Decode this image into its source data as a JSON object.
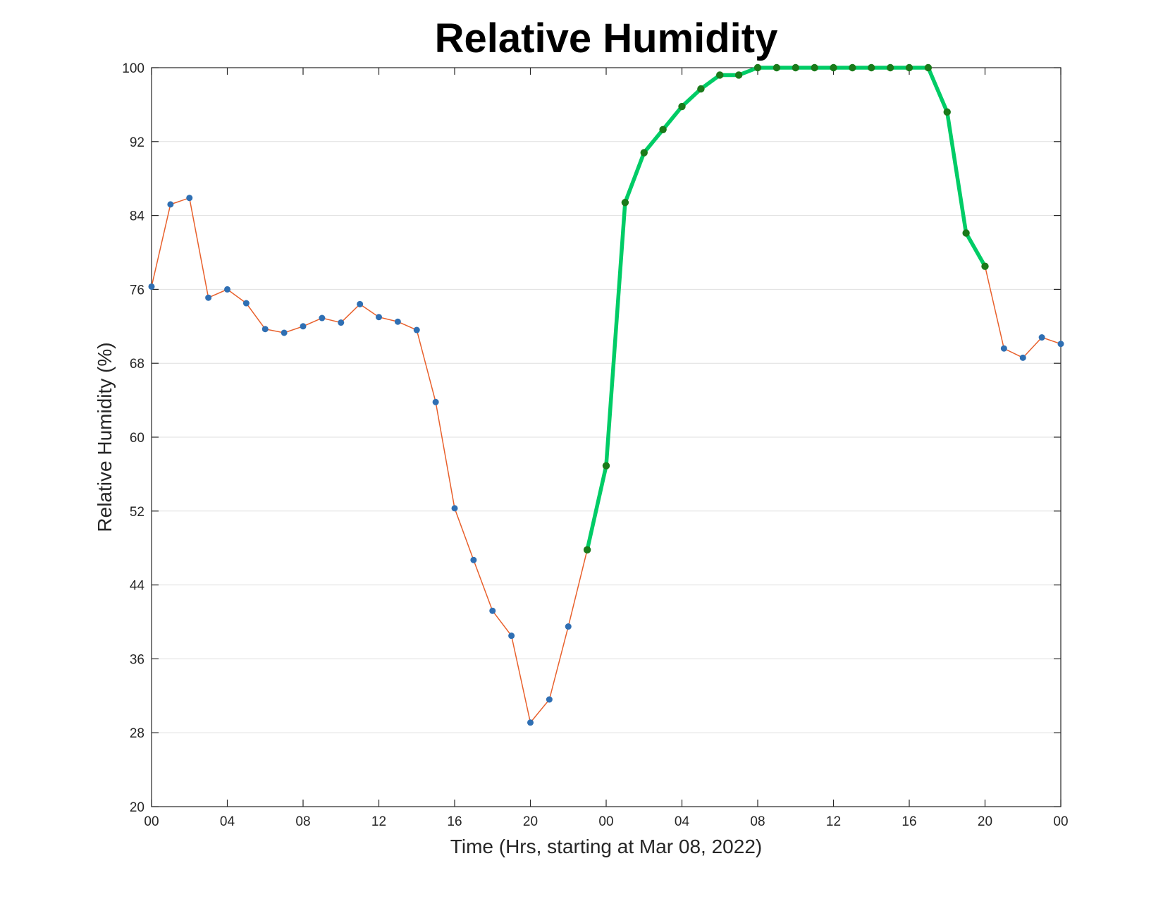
{
  "chart_data": {
    "type": "line",
    "title": "Relative Humidity",
    "xlabel": "Time (Hrs, starting at Mar 08, 2022)",
    "ylabel": "Relative Humidity (%)",
    "ylim": [
      20,
      100
    ],
    "xlim": [
      0,
      48
    ],
    "grid": "horizontal",
    "x_ticks": [
      0,
      4,
      8,
      12,
      16,
      20,
      24,
      28,
      32,
      36,
      40,
      44,
      48
    ],
    "x_tick_labels": [
      "00",
      "04",
      "08",
      "12",
      "16",
      "20",
      "00",
      "04",
      "08",
      "12",
      "16",
      "20",
      "00"
    ],
    "y_ticks": [
      20,
      28,
      36,
      44,
      52,
      60,
      68,
      76,
      84,
      92,
      100
    ],
    "y_tick_labels": [
      "20",
      "28",
      "36",
      "44",
      "52",
      "60",
      "68",
      "76",
      "84",
      "92",
      "100"
    ],
    "colors": {
      "line": "#e8602c",
      "marker": "#2f6fb3",
      "highlight_line": "#00cc66",
      "highlight_marker": "#1a7a1a"
    },
    "series": [
      {
        "x": [
          0,
          1,
          2,
          3,
          4,
          5,
          6,
          7,
          8,
          9,
          10,
          11,
          12,
          13,
          14,
          15,
          16,
          17,
          18,
          19,
          20,
          21,
          22,
          23,
          24,
          25,
          26,
          27,
          28,
          29,
          30,
          31,
          32,
          33,
          34,
          35,
          36,
          37,
          38,
          39,
          40,
          41,
          42,
          43,
          44,
          45,
          46,
          47,
          48
        ],
        "values": [
          76.3,
          85.2,
          85.9,
          75.1,
          76.0,
          74.5,
          71.7,
          71.3,
          72.0,
          72.9,
          72.4,
          74.4,
          73.0,
          72.5,
          71.6,
          63.8,
          52.3,
          46.7,
          41.2,
          38.5,
          29.1,
          31.6,
          39.5,
          47.8,
          56.9,
          85.4,
          90.8,
          93.3,
          95.8,
          97.7,
          99.2,
          99.2,
          100.0,
          100.0,
          100.0,
          100.0,
          100.0,
          100.0,
          100.0,
          100.0,
          100.0,
          100.0,
          95.2,
          82.1,
          78.5,
          69.6,
          68.6,
          70.8,
          70.1
        ],
        "highlight_range": [
          23,
          44
        ]
      }
    ]
  }
}
